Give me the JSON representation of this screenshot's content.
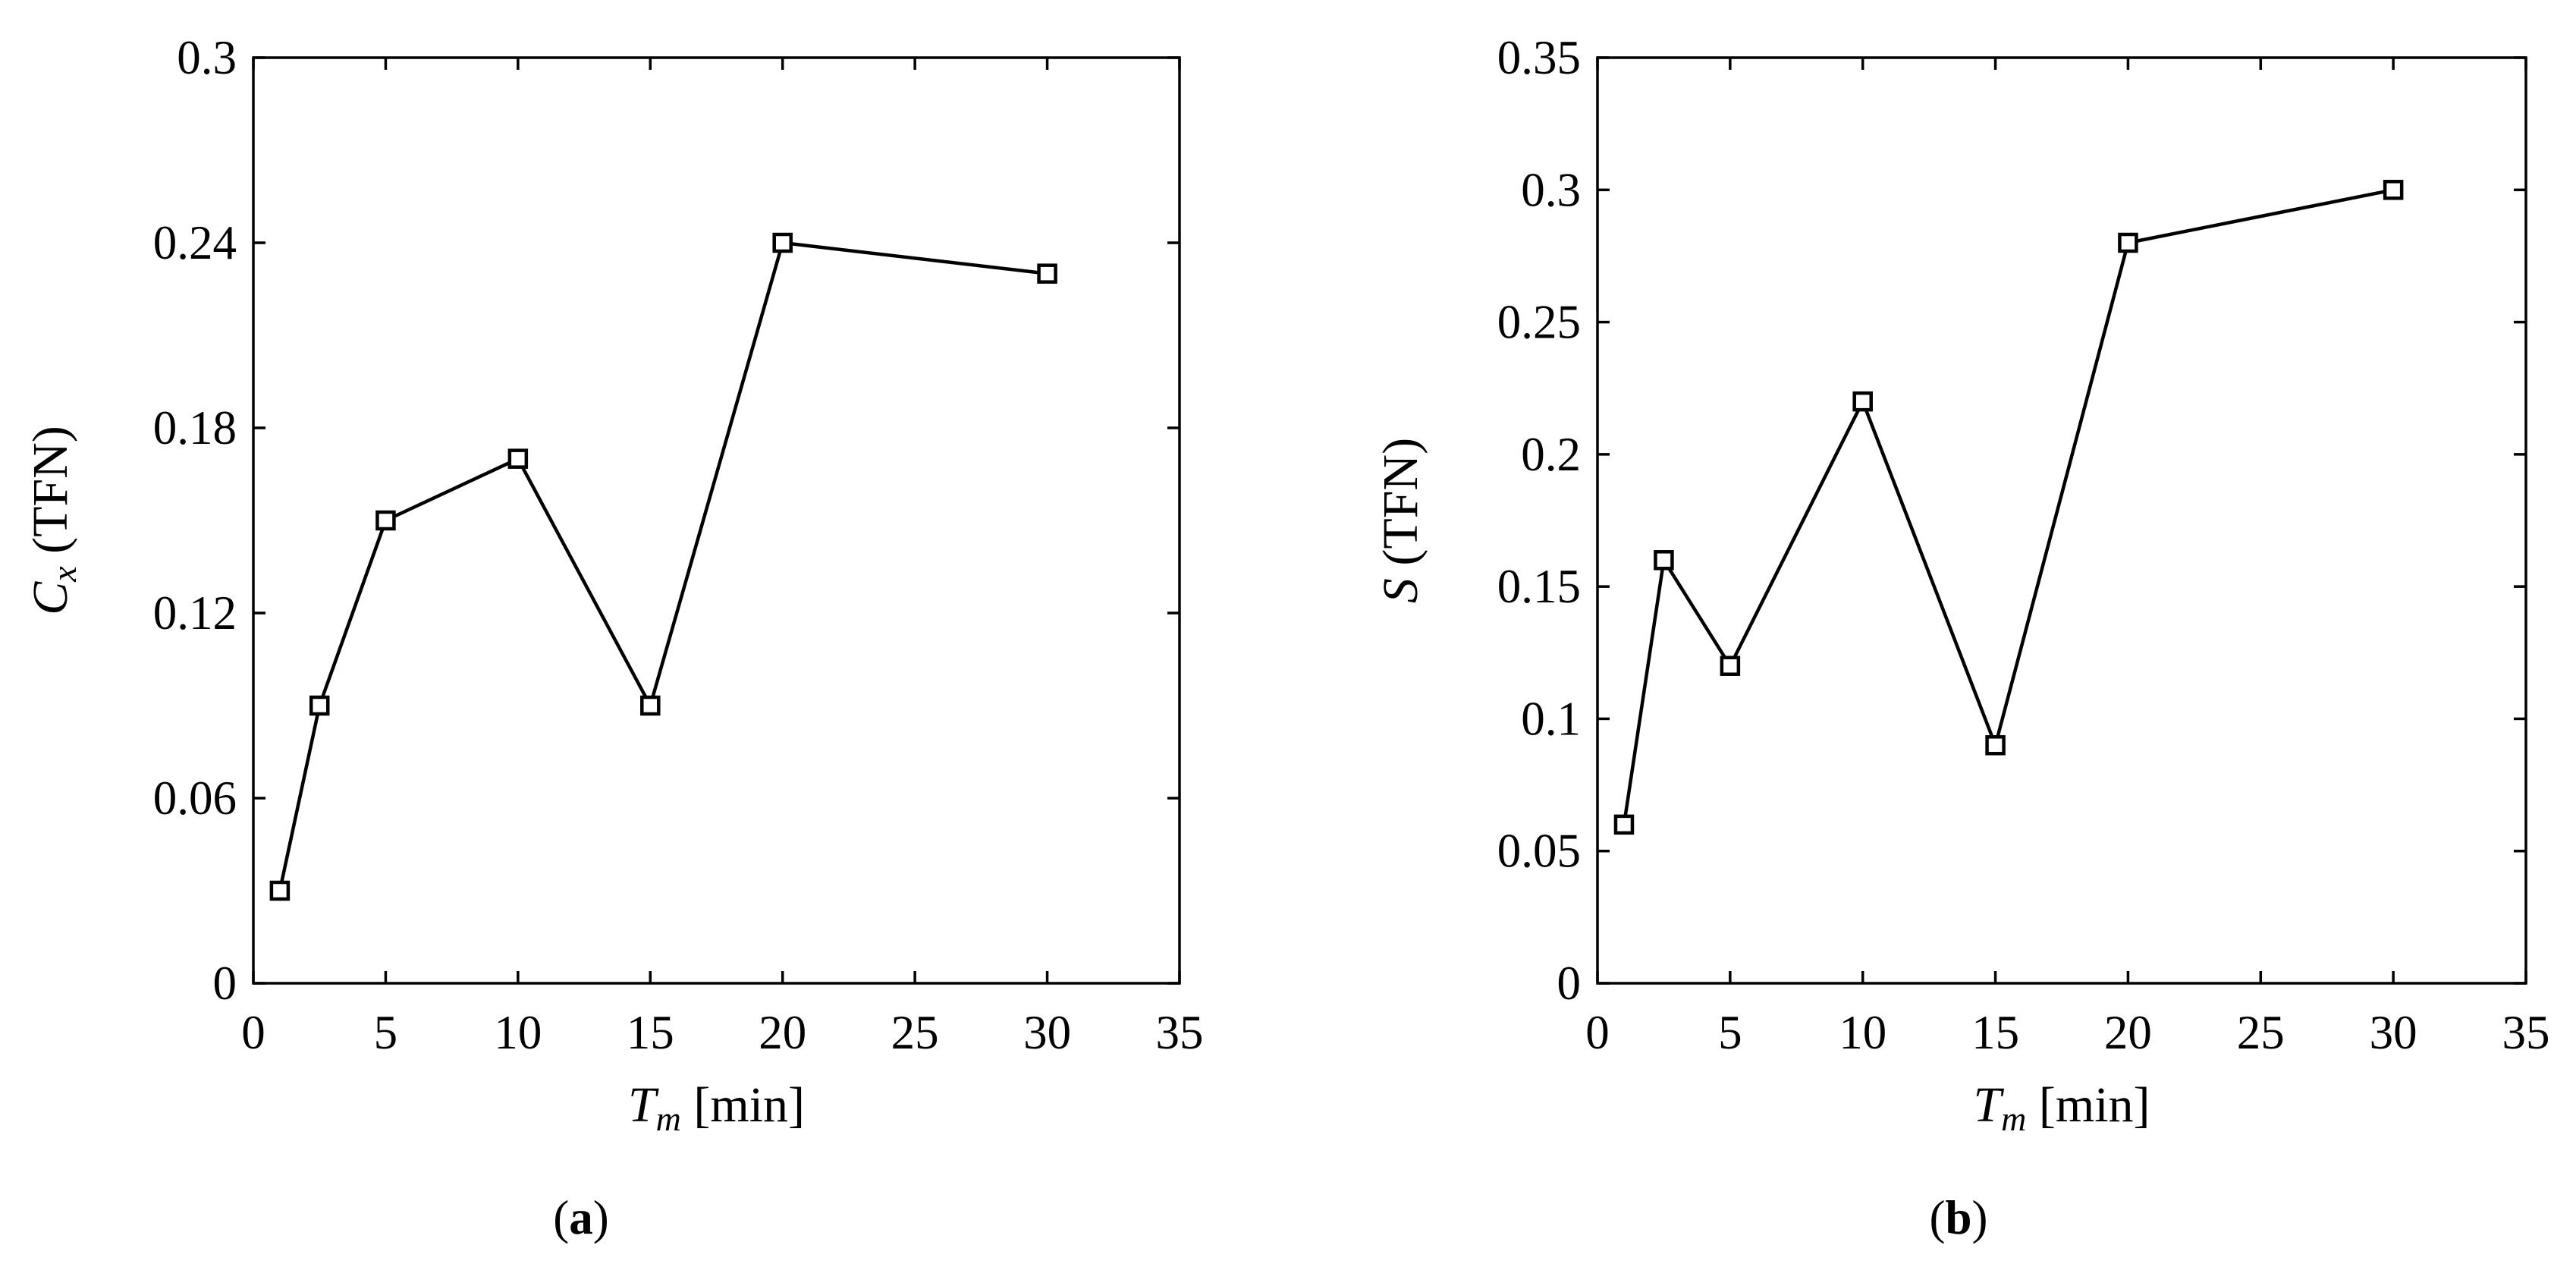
{
  "chart_data": [
    {
      "type": "line",
      "panel_label": "a",
      "xlabel": {
        "main": "T",
        "sub": "m",
        "unit": " [min]"
      },
      "ylabel": {
        "main": "C",
        "sub": "x",
        "unit": " (TFN)"
      },
      "xlim": [
        0,
        35
      ],
      "ylim": [
        0,
        0.3
      ],
      "xticks": [
        0,
        5,
        10,
        15,
        20,
        25,
        30,
        35
      ],
      "xtick_labels": [
        "0",
        "5",
        "10",
        "15",
        "20",
        "25",
        "30",
        "35"
      ],
      "yticks": [
        0,
        0.06,
        0.12,
        0.18,
        0.24,
        0.3
      ],
      "ytick_labels": [
        "0",
        "0.06",
        "0.12",
        "0.18",
        "0.24",
        "0.3"
      ],
      "grid": false,
      "legend": "none",
      "marker": "open-square",
      "series": [
        {
          "x": [
            1,
            2.5,
            5,
            10,
            15,
            20,
            30
          ],
          "y": [
            0.03,
            0.09,
            0.15,
            0.17,
            0.09,
            0.24,
            0.23
          ]
        }
      ]
    },
    {
      "type": "line",
      "panel_label": "b",
      "xlabel": {
        "main": "T",
        "sub": "m",
        "unit": " [min]"
      },
      "ylabel": {
        "main": "S",
        "sub": "",
        "unit": " (TFN)"
      },
      "xlim": [
        0,
        35
      ],
      "ylim": [
        0,
        0.35
      ],
      "xticks": [
        0,
        5,
        10,
        15,
        20,
        25,
        30,
        35
      ],
      "xtick_labels": [
        "0",
        "5",
        "10",
        "15",
        "20",
        "25",
        "30",
        "35"
      ],
      "yticks": [
        0,
        0.05,
        0.1,
        0.15,
        0.2,
        0.25,
        0.3,
        0.35
      ],
      "ytick_labels": [
        "0",
        "0.05",
        "0.1",
        "0.15",
        "0.2",
        "0.25",
        "0.3",
        "0.35"
      ],
      "grid": false,
      "legend": "none",
      "marker": "open-square",
      "series": [
        {
          "x": [
            1,
            2.5,
            5,
            10,
            15,
            20,
            30
          ],
          "y": [
            0.06,
            0.16,
            0.12,
            0.22,
            0.09,
            0.28,
            0.3
          ]
        }
      ]
    }
  ]
}
